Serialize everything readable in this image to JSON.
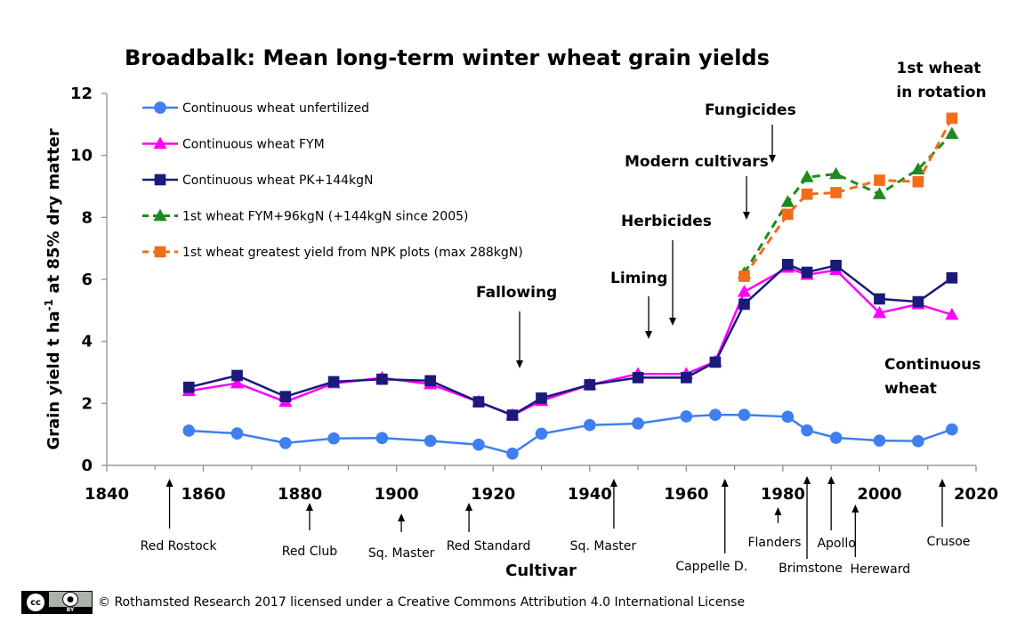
{
  "chart_data": {
    "type": "line",
    "title": "Broadbalk: Mean long-term winter wheat grain yields",
    "xlabel": "Cultivar",
    "ylabel_parts": [
      "Grain yield t ha",
      "-1",
      " at 85% dry matter"
    ],
    "xlim": [
      1840,
      2020
    ],
    "ylim": [
      0,
      12
    ],
    "x_ticks": [
      1840,
      1860,
      1880,
      1900,
      1920,
      1940,
      1960,
      1980,
      2000,
      2020
    ],
    "y_ticks": [
      0,
      2,
      4,
      6,
      8,
      10,
      12
    ],
    "legend_position": "top-left",
    "series": [
      {
        "name": "Continuous wheat unfertilized",
        "color": "#3f7fef",
        "marker": "circle",
        "dash": "solid",
        "x": [
          1857,
          1867,
          1877,
          1887,
          1897,
          1907,
          1917,
          1924,
          1930,
          1940,
          1950,
          1960,
          1966,
          1972,
          1981,
          1985,
          1991,
          2000,
          2008,
          2015
        ],
        "y": [
          1.12,
          1.03,
          0.72,
          0.87,
          0.88,
          0.79,
          0.67,
          0.38,
          1.02,
          1.3,
          1.35,
          1.58,
          1.63,
          1.63,
          1.57,
          1.13,
          0.89,
          0.8,
          0.78,
          1.16
        ]
      },
      {
        "name": "Continuous wheat FYM",
        "color": "#ff00ff",
        "marker": "triangle",
        "dash": "solid",
        "x": [
          1857,
          1867,
          1877,
          1887,
          1897,
          1907,
          1917,
          1924,
          1930,
          1940,
          1950,
          1960,
          1966,
          1972,
          1981,
          1985,
          1991,
          2000,
          2008,
          2015
        ],
        "y": [
          2.4,
          2.65,
          2.05,
          2.65,
          2.82,
          2.62,
          2.05,
          1.62,
          2.08,
          2.6,
          2.95,
          2.95,
          3.35,
          5.6,
          6.38,
          6.15,
          6.3,
          4.92,
          5.2,
          4.86
        ]
      },
      {
        "name": "Continuous wheat PK+144kgN",
        "color": "#1a1a7a",
        "marker": "square",
        "dash": "solid",
        "x": [
          1857,
          1867,
          1877,
          1887,
          1897,
          1907,
          1917,
          1924,
          1930,
          1940,
          1950,
          1960,
          1966,
          1972,
          1981,
          1985,
          1991,
          2000,
          2008,
          2015
        ],
        "y": [
          2.52,
          2.9,
          2.22,
          2.7,
          2.78,
          2.73,
          2.05,
          1.62,
          2.17,
          2.6,
          2.83,
          2.83,
          3.33,
          5.2,
          6.48,
          6.23,
          6.45,
          5.37,
          5.28,
          6.05
        ]
      },
      {
        "name": "1st wheat FYM+96kgN (+144kgN since 2005)",
        "color": "#1f8a1f",
        "marker": "triangle",
        "dash": "dashed",
        "x": [
          1972,
          1981,
          1985,
          1991,
          2000,
          2008,
          2015
        ],
        "y": [
          6.2,
          8.5,
          9.3,
          9.4,
          8.75,
          9.55,
          10.7
        ]
      },
      {
        "name": "1st wheat greatest yield from NPK plots (max 288kgN)",
        "color": "#f26c1a",
        "marker": "square",
        "dash": "dashed",
        "x": [
          1972,
          1981,
          1985,
          1991,
          2000,
          2008,
          2015
        ],
        "y": [
          6.1,
          8.1,
          8.75,
          8.8,
          9.2,
          9.15,
          11.2
        ]
      }
    ],
    "annotations": {
      "fallowing": "Fallowing",
      "liming": "Liming",
      "herbicides": "Herbicides",
      "modern_cultivars": "Modern cultivars",
      "fungicides": "Fungicides",
      "first_wheat_line1": "1st wheat",
      "first_wheat_line2": "in rotation",
      "continuous_line1": "Continuous",
      "continuous_line2": "wheat"
    },
    "cultivars": [
      {
        "name": "Red Rostock",
        "year": 1853
      },
      {
        "name": "Red Club",
        "year": 1882
      },
      {
        "name": "Sq. Master",
        "year": 1901
      },
      {
        "name": "Red Standard",
        "year": 1915
      },
      {
        "name": "Sq. Master",
        "year": 1945
      },
      {
        "name": "Cappelle D.",
        "year": 1968
      },
      {
        "name": "Flanders",
        "year": 1979
      },
      {
        "name": "Brimstone",
        "year": 1985
      },
      {
        "name": "Apollo",
        "year": 1990
      },
      {
        "name": "Hereward",
        "year": 1995
      },
      {
        "name": "Crusoe",
        "year": 2013
      }
    ]
  },
  "license": {
    "cc_label": "cc",
    "by_label": "BY",
    "text": "© Rothamsted Research 2017 licensed under a Creative Commons Attribution 4.0 International License"
  }
}
